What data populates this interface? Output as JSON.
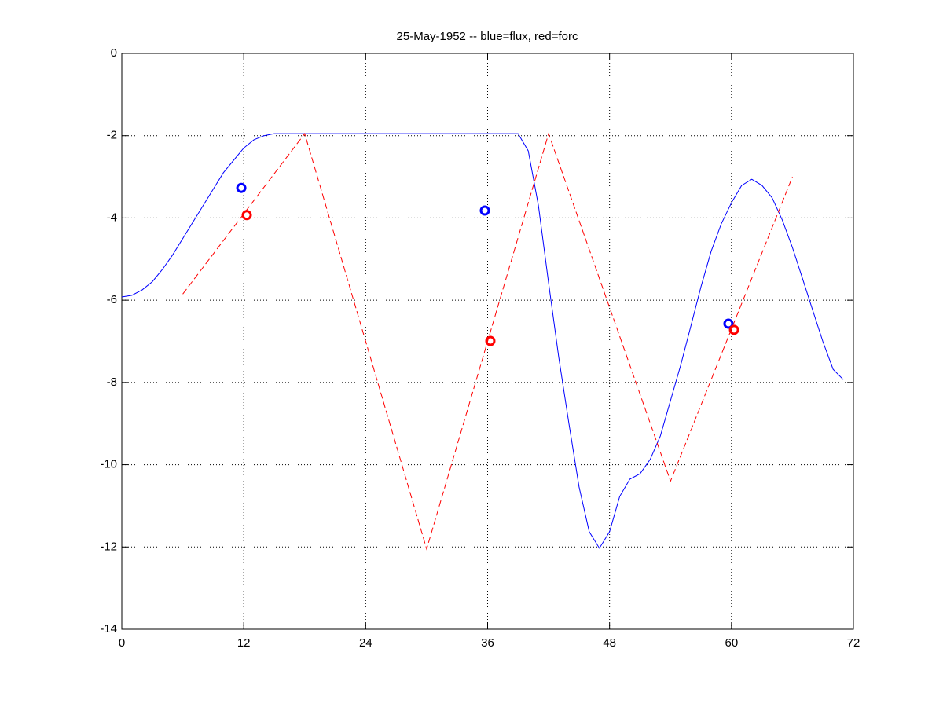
{
  "chart_data": {
    "type": "line",
    "title": "25-May-1952 -- blue=flux, red=forc",
    "xlim": [
      0,
      72
    ],
    "ylim": [
      -14,
      0
    ],
    "xticks": [
      0,
      12,
      24,
      36,
      48,
      60,
      72
    ],
    "yticks": [
      0,
      -2,
      -4,
      -6,
      -8,
      -10,
      -12,
      -14
    ],
    "grid": true,
    "series": [
      {
        "color": "#0000ff",
        "style": "solid",
        "x": [
          0,
          1,
          2,
          3,
          4,
          5,
          6,
          7,
          8,
          9,
          10,
          11,
          12,
          13,
          14,
          15,
          16,
          17,
          18,
          19,
          20,
          21,
          22,
          23,
          24,
          25,
          26,
          27,
          28,
          29,
          30,
          31,
          32,
          33,
          34,
          35,
          36,
          37,
          38,
          39,
          40,
          41,
          42,
          43,
          44,
          45,
          46,
          47,
          48,
          49,
          50,
          51,
          52,
          53,
          54,
          55,
          56,
          57,
          58,
          59,
          60,
          61,
          62,
          63,
          64,
          65,
          66,
          67,
          68,
          69,
          70,
          71
        ],
        "values": [
          -5.92,
          -5.88,
          -5.75,
          -5.55,
          -5.25,
          -4.9,
          -4.5,
          -4.1,
          -3.7,
          -3.3,
          -2.9,
          -2.6,
          -2.3,
          -2.1,
          -2.0,
          -1.95,
          -1.95,
          -1.95,
          -1.95,
          -1.95,
          -1.95,
          -1.95,
          -1.95,
          -1.95,
          -1.95,
          -1.95,
          -1.95,
          -1.95,
          -1.95,
          -1.95,
          -1.95,
          -1.95,
          -1.95,
          -1.95,
          -1.95,
          -1.95,
          -1.95,
          -1.95,
          -1.95,
          -1.95,
          -2.37,
          -3.7,
          -5.58,
          -7.39,
          -9.0,
          -10.54,
          -11.63,
          -12.03,
          -11.63,
          -10.77,
          -10.35,
          -10.22,
          -9.87,
          -9.3,
          -8.44,
          -7.58,
          -6.63,
          -5.67,
          -4.81,
          -4.14,
          -3.63,
          -3.21,
          -3.06,
          -3.21,
          -3.51,
          -4.05,
          -4.72,
          -5.48,
          -6.25,
          -7.01,
          -7.68,
          -7.93
        ]
      },
      {
        "color": "#ff0000",
        "style": "dashed",
        "x": [
          6,
          18,
          30,
          42,
          54,
          66
        ],
        "values": [
          -5.85,
          -1.95,
          -12.05,
          -1.95,
          -10.4,
          -3.0
        ]
      },
      {
        "color": "#0000ff",
        "style": "marker",
        "x": [
          11.76,
          35.73,
          59.7
        ],
        "values": [
          -3.27,
          -3.82,
          -6.57
        ]
      },
      {
        "color": "#ff0000",
        "style": "marker",
        "x": [
          12.3,
          36.27,
          60.25
        ],
        "values": [
          -3.93,
          -6.99,
          -6.72
        ]
      }
    ]
  }
}
